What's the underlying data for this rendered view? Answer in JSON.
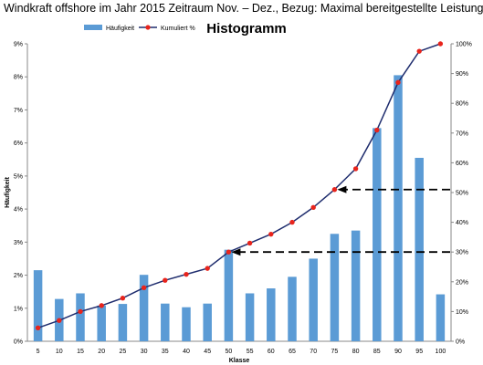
{
  "page": {
    "heading": "Windkraft offshore im Jahr 2015 Zeitraum Nov. – Dez., Bezug: Maximal bereitgestellte Leistung"
  },
  "chart_data": {
    "type": "bar",
    "title": "Histogramm",
    "xlabel": "Klasse",
    "ylabel": "Häufigkeit",
    "categories": [
      "5",
      "10",
      "15",
      "20",
      "25",
      "30",
      "35",
      "40",
      "45",
      "50",
      "55",
      "60",
      "65",
      "70",
      "75",
      "80",
      "85",
      "90",
      "95",
      "100"
    ],
    "y_ticks": [
      "0%",
      "1%",
      "2%",
      "3%",
      "4%",
      "5%",
      "6%",
      "7%",
      "8%",
      "9%"
    ],
    "y2_ticks": [
      "0%",
      "10%",
      "20%",
      "30%",
      "40%",
      "50%",
      "60%",
      "70%",
      "80%",
      "90%",
      "100%"
    ],
    "ylim": [
      0,
      9
    ],
    "y2lim": [
      0,
      100
    ],
    "grid": false,
    "legend_position": "top-left",
    "series": [
      {
        "name": "Häufigkeit",
        "type": "bar",
        "axis": "left",
        "color": "#5b9bd5",
        "values": [
          2.15,
          1.28,
          1.45,
          1.08,
          1.13,
          2.01,
          1.14,
          1.03,
          1.14,
          2.77,
          1.45,
          1.6,
          1.95,
          2.5,
          3.25,
          3.35,
          6.45,
          8.05,
          5.55,
          1.42
        ]
      },
      {
        "name": "Kumuliert %",
        "type": "line",
        "axis": "right",
        "color": "#1f2d6e",
        "marker_color": "#e8241c",
        "values": [
          4.5,
          7,
          10,
          12,
          14.5,
          18,
          20.5,
          22.5,
          24.5,
          30,
          33,
          36,
          40,
          45,
          51,
          58,
          71,
          87,
          97.5,
          100
        ]
      }
    ],
    "annotations": [
      {
        "type": "arrow",
        "style": "dashed",
        "from_value": 30,
        "from_category": "50",
        "axis": "right",
        "direction": "to-line"
      },
      {
        "type": "arrow",
        "style": "dashed",
        "from_value": 51,
        "from_category": "75",
        "axis": "right",
        "direction": "to-line"
      }
    ]
  }
}
